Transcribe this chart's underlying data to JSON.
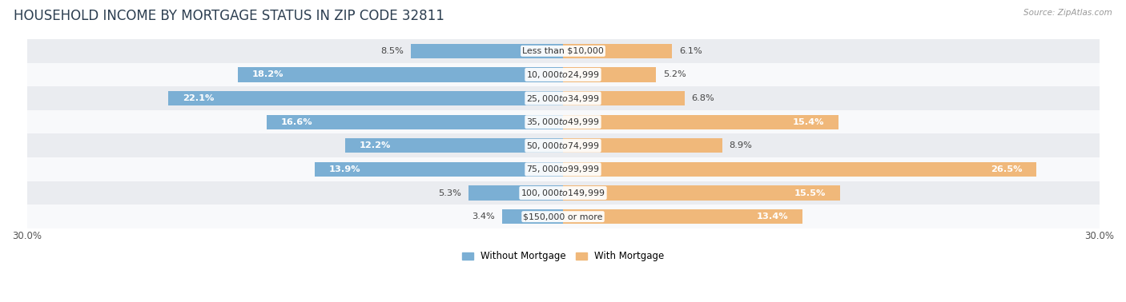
{
  "title": "HOUSEHOLD INCOME BY MORTGAGE STATUS IN ZIP CODE 32811",
  "source": "Source: ZipAtlas.com",
  "categories": [
    "Less than $10,000",
    "$10,000 to $24,999",
    "$25,000 to $34,999",
    "$35,000 to $49,999",
    "$50,000 to $74,999",
    "$75,000 to $99,999",
    "$100,000 to $149,999",
    "$150,000 or more"
  ],
  "without_mortgage": [
    8.5,
    18.2,
    22.1,
    16.6,
    12.2,
    13.9,
    5.3,
    3.4
  ],
  "with_mortgage": [
    6.1,
    5.2,
    6.8,
    15.4,
    8.9,
    26.5,
    15.5,
    13.4
  ],
  "color_without": "#7bafd4",
  "color_with": "#f0b87a",
  "background_row_light": "#eaecf0",
  "background_row_white": "#f8f9fb",
  "xlim": 30.0,
  "legend_without": "Without Mortgage",
  "legend_with": "With Mortgage",
  "title_fontsize": 12,
  "label_fontsize": 8.2,
  "bar_height": 0.62,
  "inside_threshold": 10
}
